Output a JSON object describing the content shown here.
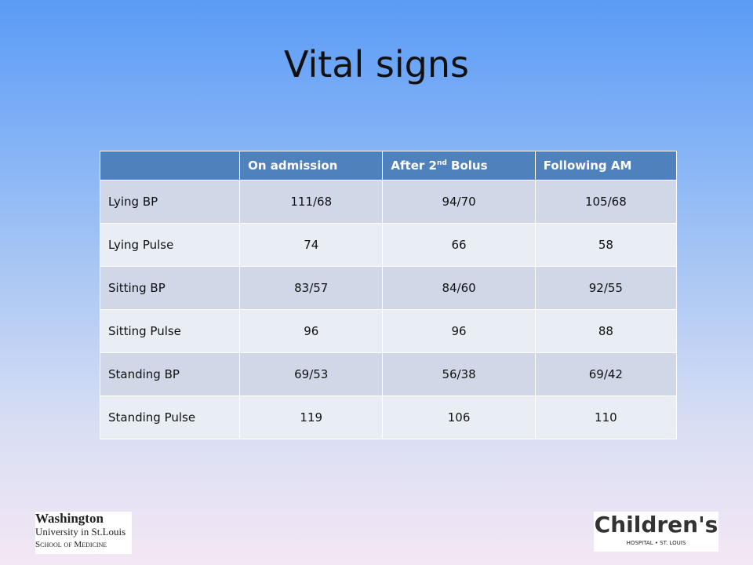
{
  "title": "Vital signs",
  "table": {
    "header": [
      "On admission",
      {
        "text": "After 2",
        "sup": "nd",
        "rest": " Bolus"
      },
      "Following AM"
    ],
    "rows": [
      [
        "Lying BP",
        "111/68",
        "94/70",
        "105/68"
      ],
      [
        "Lying Pulse",
        74,
        66,
        58
      ],
      [
        "Sitting BP",
        "83/57",
        "84/60",
        "92/55"
      ],
      [
        "Sitting Pulse",
        96,
        96,
        88
      ],
      [
        "Standing BP",
        "69/53",
        "56/38",
        "69/42"
      ],
      [
        "Standing Pulse",
        119,
        106,
        110
      ]
    ]
  },
  "logos": {
    "left": [
      "Washington",
      "University in St.Louis",
      "School of Medicine"
    ],
    "right": [
      "Children's",
      "HOSPITAL • ST. LOUIS"
    ]
  }
}
